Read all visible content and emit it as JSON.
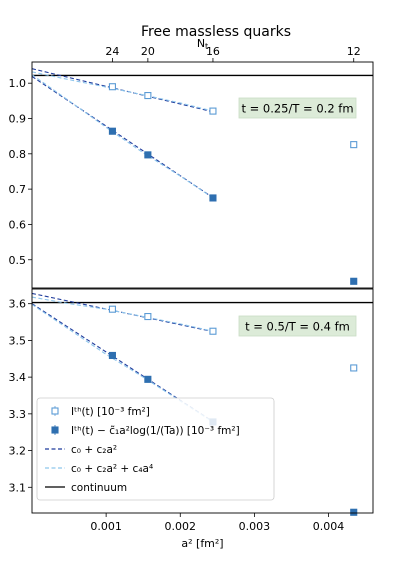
{
  "chart_data": {
    "type": "scatter",
    "title": "Free massless quarks",
    "xlabel": "a² [fm²]",
    "top_xlabel": "Nt",
    "xlim": [
      0.0,
      0.0046
    ],
    "x_ticks": [
      0.001,
      0.002,
      0.003,
      0.004
    ],
    "top_ticks": [
      {
        "label": "24",
        "a2": 0.001085
      },
      {
        "label": "20",
        "a2": 0.001563
      },
      {
        "label": "16",
        "a2": 0.002441
      },
      {
        "label": "12",
        "a2": 0.00434
      }
    ],
    "legend": [
      {
        "label": "Iᵗʰ(t) [10⁻³ fm²]",
        "style": "open-square"
      },
      {
        "label": "Iᵗʰ(t) − c̃₁a²log(1/(Ta)) [10⁻³ fm²]",
        "style": "filled-square"
      },
      {
        "label": "c₀ + c₂a²",
        "style": "dark-dashed"
      },
      {
        "label": "c₀ + c₂a² + c₄a⁴",
        "style": "light-dashed"
      },
      {
        "label": "continuum",
        "style": "black-solid"
      }
    ],
    "legend_position": "lower-left",
    "colors": {
      "open": "#5b9bd5",
      "filled": "#2e6fb0",
      "fit2": "#1f3b9c",
      "fit4": "#8ec6ec",
      "continuum": "#000000",
      "annotation_bg": "#dcebd8"
    },
    "panels": [
      {
        "annotation": "t = 0.25/T = 0.2 fm",
        "ylim": [
          0.42,
          1.06
        ],
        "y_ticks": [
          0.5,
          0.6,
          0.7,
          0.8,
          0.9,
          1.0
        ],
        "continuum": 1.022,
        "series": [
          {
            "name": "Iᵗʰ(t) [10⁻³ fm²]",
            "x": [
              0.001085,
              0.001563,
              0.002441,
              0.00434
            ],
            "y": [
              0.99,
              0.965,
              0.921,
              0.826
            ]
          },
          {
            "name": "Iᵗʰ(t) − c̃₁a²log(1/(Ta)) [10⁻³ fm²]",
            "x": [
              0.001085,
              0.001563,
              0.002441,
              0.00434
            ],
            "y": [
              0.864,
              0.797,
              0.675,
              0.439
            ]
          }
        ],
        "fits": [
          {
            "name": "c₀ + c₂a²",
            "x": [
              0.0,
              0.002441
            ],
            "y": [
              1.041,
              0.919
            ]
          },
          {
            "name": "c₀ + c₂a²",
            "x": [
              0.0,
              0.002441
            ],
            "y": [
              1.019,
              0.676
            ]
          },
          {
            "name": "c₀ + c₂a² + c₄a⁴",
            "x": [
              0.0,
              0.0005,
              0.001,
              0.0015,
              0.002,
              0.002441
            ],
            "y": [
              1.032,
              1.01,
              0.989,
              0.967,
              0.944,
              0.921
            ]
          },
          {
            "name": "c₀ + c₂a² + c₄a⁴",
            "x": [
              0.0,
              0.0005,
              0.001,
              0.0015,
              0.002,
              0.002441
            ],
            "y": [
              1.024,
              0.95,
              0.875,
              0.803,
              0.737,
              0.675
            ]
          }
        ]
      },
      {
        "annotation": "t = 0.5/T = 0.4 fm",
        "ylim": [
          3.03,
          3.64
        ],
        "y_ticks": [
          3.1,
          3.2,
          3.3,
          3.4,
          3.5,
          3.6
        ],
        "continuum": 3.603,
        "series": [
          {
            "name": "Iᵗʰ(t) [10⁻³ fm²]",
            "x": [
              0.001085,
              0.001563,
              0.002441,
              0.00434
            ],
            "y": [
              3.585,
              3.565,
              3.525,
              3.425
            ]
          },
          {
            "name": "Iᵗʰ(t) − c̃₁a²log(1/(Ta)) [10⁻³ fm²]",
            "x": [
              0.001085,
              0.001563,
              0.002441,
              0.00434
            ],
            "y": [
              3.459,
              3.394,
              3.278,
              3.032
            ]
          }
        ],
        "fits": [
          {
            "name": "c₀ + c₂a²",
            "x": [
              0.0,
              0.002441
            ],
            "y": [
              3.628,
              3.524
            ]
          },
          {
            "name": "c₀ + c₂a²",
            "x": [
              0.0,
              0.002441
            ],
            "y": [
              3.6,
              3.279
            ]
          },
          {
            "name": "c₀ + c₂a² + c₄a⁴",
            "x": [
              0.0,
              0.0005,
              0.001,
              0.0015,
              0.002,
              0.002441
            ],
            "y": [
              3.618,
              3.6,
              3.585,
              3.565,
              3.545,
              3.525
            ]
          },
          {
            "name": "c₀ + c₂a² + c₄a⁴",
            "x": [
              0.0,
              0.0005,
              0.001,
              0.0015,
              0.002,
              0.002441
            ],
            "y": [
              3.598,
              3.53,
              3.462,
              3.4,
              3.335,
              3.278
            ]
          }
        ]
      }
    ]
  }
}
